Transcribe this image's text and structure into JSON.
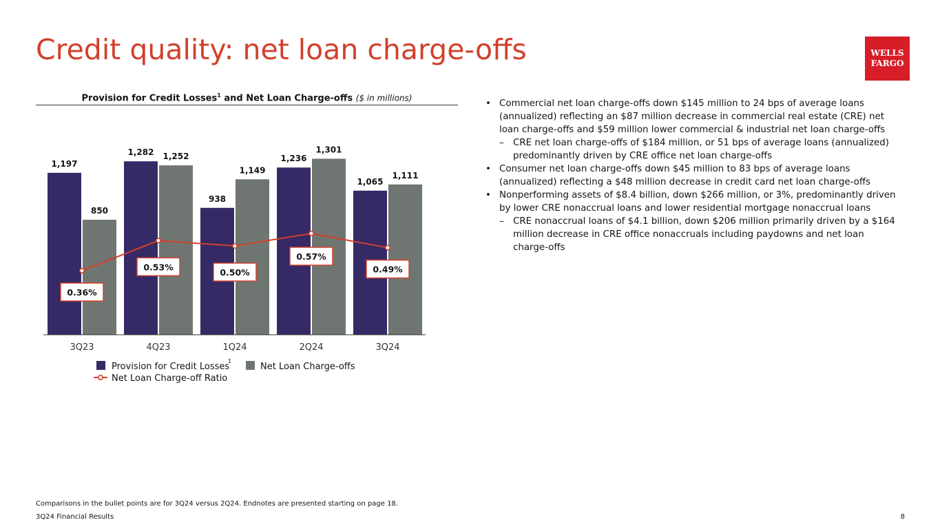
{
  "page": {
    "title": "Credit quality: net loan charge-offs",
    "logo": {
      "line1": "WELLS",
      "line2": "FARGO"
    },
    "footnote": "Comparisons in the bullet points are for 3Q24 versus 2Q24. Endnotes are presented starting on page 18.",
    "footer": "3Q24 Financial Results",
    "page_number": "8"
  },
  "colors": {
    "title": "#d2402b",
    "provision": "#352a66",
    "charge_offs": "#6f7672",
    "ratio_line": "#d2402b",
    "logo_bg": "#d71e28"
  },
  "chart_data": {
    "type": "bar",
    "title_main": "Provision for Credit Losses",
    "title_sup": "1",
    "title_rest": " and Net Loan Charge-offs",
    "title_unit": "($ in millions)",
    "categories": [
      "3Q23",
      "4Q23",
      "1Q24",
      "2Q24",
      "3Q24"
    ],
    "ylim": [
      0,
      1400
    ],
    "grid": false,
    "legend_position": "bottom-left",
    "series": [
      {
        "name": "Provision for Credit Losses",
        "name_sup": "1",
        "type": "bar",
        "color": "#352a66",
        "values": [
          1197,
          1282,
          938,
          1236,
          1065
        ],
        "labels": [
          "1,197",
          "1,282",
          "938",
          "1,236",
          "1,065"
        ]
      },
      {
        "name": "Net Loan Charge-offs",
        "type": "bar",
        "color": "#6f7672",
        "values": [
          850,
          1252,
          1149,
          1301,
          1111
        ],
        "labels": [
          "850",
          "1,252",
          "1,149",
          "1,301",
          "1,111"
        ]
      },
      {
        "name": "Net Loan Charge-off Ratio",
        "type": "line",
        "unit": "%",
        "color": "#d2402b",
        "values": [
          0.36,
          0.53,
          0.5,
          0.57,
          0.49
        ],
        "labels": [
          "0.36%",
          "0.53%",
          "0.50%",
          "0.57%",
          "0.49%"
        ]
      }
    ]
  },
  "bullets": [
    {
      "text": "Commercial net loan charge-offs down $145 million to 24 bps of average loans (annualized) reflecting an $87 million decrease in commercial real estate (CRE) net loan charge-offs and $59 million lower commercial & industrial net loan charge-offs",
      "sub": [
        "CRE net loan charge-offs of $184 million, or 51 bps of average loans (annualized) predominantly driven by CRE office net loan charge-offs"
      ]
    },
    {
      "text": "Consumer net loan charge-offs down $45 million to 83 bps of average loans (annualized) reflecting a $48 million decrease in credit card net loan charge-offs",
      "sub": []
    },
    {
      "text": "Nonperforming assets of $8.4 billion, down $266 million, or 3%, predominantly driven by lower CRE nonaccrual loans and lower residential mortgage nonaccrual loans",
      "sub": [
        "CRE nonaccrual loans of $4.1 billion, down $206 million primarily driven by a $164 million decrease in CRE office nonaccruals including paydowns and net loan charge-offs"
      ]
    }
  ],
  "markers": {
    "bullet": "•",
    "dash": "–"
  }
}
